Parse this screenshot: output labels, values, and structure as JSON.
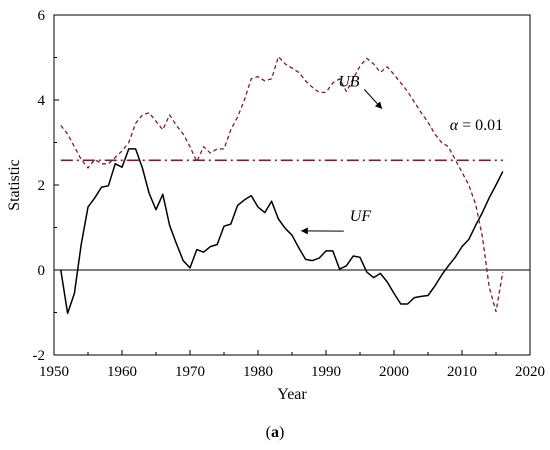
{
  "chart_data": {
    "type": "line",
    "title": "",
    "xlabel": "Year",
    "ylabel": "Statistic",
    "xlim": [
      1950,
      2020
    ],
    "ylim": [
      -2,
      6
    ],
    "x_ticks": [
      1950,
      1960,
      1970,
      1980,
      1990,
      2000,
      2010,
      2020
    ],
    "y_ticks": [
      -2,
      0,
      2,
      4,
      6
    ],
    "grid": false,
    "legend": "none",
    "caption": {
      "pre": "(",
      "label": "a",
      "post": ")"
    },
    "reference_lines": [
      {
        "name": "zero",
        "y": 0,
        "style": "solid",
        "color": "#000000"
      },
      {
        "name": "alpha",
        "y": 2.58,
        "style": "dash-dot",
        "color": "#7a1d33",
        "x_range": [
          1951,
          2016
        ]
      }
    ],
    "annotations": [
      {
        "id": "ub",
        "text": "UB",
        "x": 1991.8,
        "y": 4.32,
        "arrow_to": [
          1998.2,
          3.8
        ]
      },
      {
        "id": "uf",
        "text": "UF",
        "x": 1993.5,
        "y": 1.15,
        "arrow_to": [
          1986.4,
          0.92
        ]
      },
      {
        "id": "alpha",
        "symbol": "α",
        "text": " = 0.01",
        "x": 2008.2,
        "y": 3.3
      }
    ],
    "series": [
      {
        "name": "UF",
        "color": "#000000",
        "style": "solid",
        "x": [
          1951,
          1952,
          1953,
          1954,
          1955,
          1956,
          1957,
          1958,
          1959,
          1960,
          1961,
          1962,
          1963,
          1964,
          1965,
          1966,
          1967,
          1968,
          1969,
          1970,
          1971,
          1972,
          1973,
          1974,
          1975,
          1976,
          1977,
          1978,
          1979,
          1980,
          1981,
          1982,
          1983,
          1984,
          1985,
          1986,
          1987,
          1988,
          1989,
          1990,
          1991,
          1992,
          1993,
          1994,
          1995,
          1996,
          1997,
          1998,
          1999,
          2000,
          2001,
          2002,
          2003,
          2004,
          2005,
          2006,
          2007,
          2008,
          2009,
          2010,
          2011,
          2012,
          2013,
          2014,
          2015,
          2016
        ],
        "y": [
          0,
          -1.02,
          -0.55,
          0.6,
          1.48,
          1.7,
          1.95,
          1.98,
          2.5,
          2.42,
          2.85,
          2.85,
          2.4,
          1.8,
          1.42,
          1.78,
          1.05,
          0.62,
          0.22,
          0.05,
          0.48,
          0.42,
          0.55,
          0.6,
          1.03,
          1.08,
          1.52,
          1.65,
          1.75,
          1.48,
          1.35,
          1.62,
          1.2,
          0.98,
          0.82,
          0.52,
          0.25,
          0.22,
          0.28,
          0.45,
          0.45,
          0.02,
          0.1,
          0.33,
          0.3,
          -0.05,
          -0.18,
          -0.08,
          -0.28,
          -0.55,
          -0.8,
          -0.8,
          -0.65,
          -0.62,
          -0.6,
          -0.38,
          -0.12,
          0.1,
          0.3,
          0.55,
          0.72,
          1.05,
          1.35,
          1.7,
          2.0,
          2.32
        ]
      },
      {
        "name": "UB",
        "color": "#7a1d33",
        "style": "dashed",
        "x": [
          1951,
          1952,
          1953,
          1954,
          1955,
          1956,
          1957,
          1958,
          1959,
          1960,
          1961,
          1962,
          1963,
          1964,
          1965,
          1966,
          1967,
          1968,
          1969,
          1970,
          1971,
          1972,
          1973,
          1974,
          1975,
          1976,
          1977,
          1978,
          1979,
          1980,
          1981,
          1982,
          1983,
          1984,
          1985,
          1986,
          1987,
          1988,
          1989,
          1990,
          1991,
          1992,
          1993,
          1994,
          1995,
          1996,
          1997,
          1998,
          1999,
          2000,
          2001,
          2002,
          2003,
          2004,
          2005,
          2006,
          2007,
          2008,
          2009,
          2010,
          2011,
          2012,
          2013,
          2014,
          2015,
          2016
        ],
        "y": [
          3.4,
          3.2,
          2.9,
          2.6,
          2.4,
          2.6,
          2.5,
          2.5,
          2.65,
          2.8,
          3.0,
          3.45,
          3.65,
          3.7,
          3.5,
          3.3,
          3.65,
          3.4,
          3.2,
          2.9,
          2.55,
          2.9,
          2.75,
          2.85,
          2.85,
          3.3,
          3.6,
          4.0,
          4.5,
          4.55,
          4.45,
          4.5,
          5.02,
          4.85,
          4.75,
          4.65,
          4.45,
          4.3,
          4.18,
          4.18,
          4.4,
          4.5,
          4.2,
          4.5,
          4.8,
          4.98,
          4.85,
          4.65,
          4.78,
          4.6,
          4.4,
          4.2,
          3.95,
          3.7,
          3.48,
          3.2,
          3.0,
          2.9,
          2.6,
          2.3,
          2.0,
          1.55,
          0.78,
          -0.4,
          -0.98,
          -0.05
        ]
      }
    ]
  }
}
